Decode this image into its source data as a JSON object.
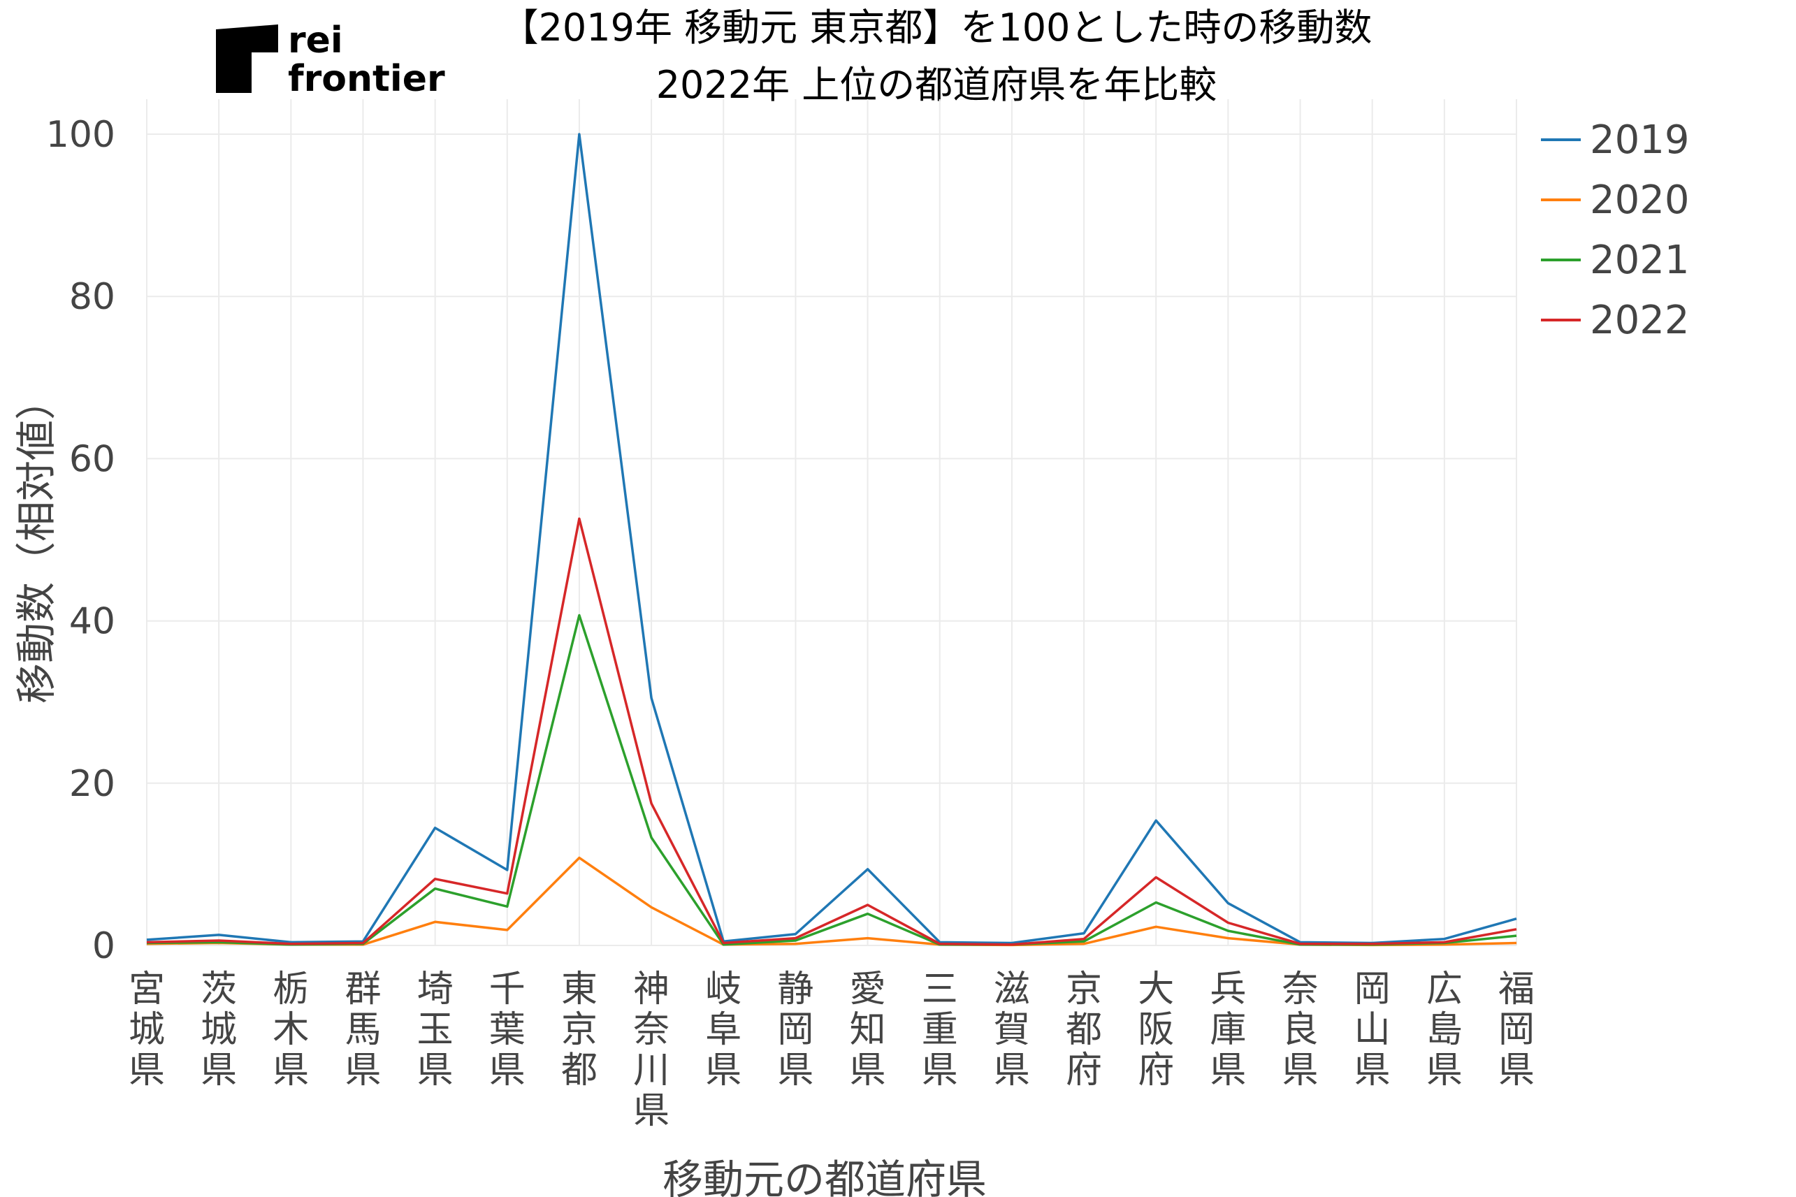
{
  "logo": {
    "line1": "rei",
    "line2": "frontier"
  },
  "chart_data": {
    "type": "line",
    "title": "【2019年 移動元 東京都】を100とした時の移動数",
    "subtitle": "2022年 上位の都道府県を年比較",
    "xlabel": "移動元の都道府県",
    "ylabel": "移動数（相対値）",
    "ylim": [
      0,
      100
    ],
    "yticks": [
      0,
      20,
      40,
      60,
      80,
      100
    ],
    "grid": true,
    "legend_position": "top-right",
    "categories": [
      "宮城県",
      "茨城県",
      "栃木県",
      "群馬県",
      "埼玉県",
      "千葉県",
      "東京都",
      "神奈川県",
      "岐阜県",
      "静岡県",
      "愛知県",
      "三重県",
      "滋賀県",
      "京都府",
      "大阪府",
      "兵庫県",
      "奈良県",
      "岡山県",
      "広島県",
      "福岡県"
    ],
    "series": [
      {
        "name": "2019",
        "color": "#1f77b4",
        "values": [
          0.7,
          1.3,
          0.4,
          0.5,
          14.5,
          9.3,
          100,
          30.5,
          0.5,
          1.4,
          9.4,
          0.4,
          0.3,
          1.5,
          15.4,
          5.2,
          0.4,
          0.3,
          0.8,
          3.3
        ]
      },
      {
        "name": "2020",
        "color": "#ff7f0e",
        "values": [
          0.2,
          0.3,
          0.1,
          0.1,
          2.9,
          1.9,
          10.8,
          4.7,
          0.1,
          0.2,
          0.9,
          0.1,
          0.05,
          0.2,
          2.3,
          0.9,
          0.1,
          0.05,
          0.1,
          0.3
        ]
      },
      {
        "name": "2021",
        "color": "#2ca02c",
        "values": [
          0.3,
          0.4,
          0.1,
          0.2,
          7.0,
          4.8,
          40.7,
          13.3,
          0.1,
          0.6,
          3.9,
          0.1,
          0.1,
          0.5,
          5.3,
          1.8,
          0.1,
          0.1,
          0.3,
          1.2
        ]
      },
      {
        "name": "2022",
        "color": "#d62728",
        "values": [
          0.4,
          0.6,
          0.2,
          0.3,
          8.2,
          6.4,
          52.6,
          17.5,
          0.3,
          0.9,
          5.0,
          0.2,
          0.1,
          0.8,
          8.4,
          2.8,
          0.2,
          0.2,
          0.4,
          2.0
        ]
      }
    ]
  }
}
